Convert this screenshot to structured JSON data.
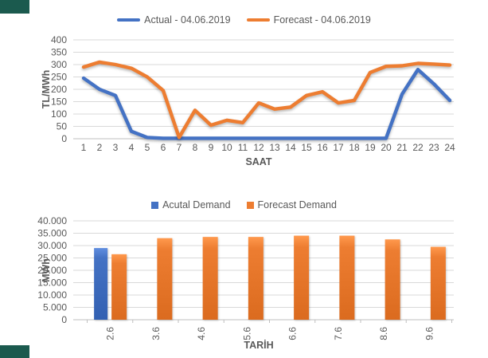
{
  "page": {
    "background": "#ffffff",
    "corner_accent_color": "#1B5A4E",
    "text_color": "#595959",
    "grid_color": "#D9D9D9",
    "axis_color": "#BFBFBF"
  },
  "chart_data": [
    {
      "type": "line",
      "title": "",
      "xlabel": "SAAT",
      "ylabel": "TL/MWh",
      "ylim": [
        0,
        400
      ],
      "ytick_labels": [
        "400",
        "350",
        "300",
        "250",
        "200",
        "150",
        "100",
        "50",
        "0"
      ],
      "categories": [
        "1",
        "2",
        "3",
        "4",
        "5",
        "6",
        "7",
        "8",
        "9",
        "10",
        "11",
        "12",
        "13",
        "14",
        "15",
        "16",
        "17",
        "18",
        "19",
        "20",
        "21",
        "22",
        "23",
        "24"
      ],
      "grid": true,
      "legend_position": "top",
      "series": [
        {
          "name": "Actual - 04.06.2019",
          "color": "#4472C4",
          "values": [
            245,
            200,
            175,
            30,
            5,
            2,
            2,
            2,
            2,
            2,
            2,
            2,
            2,
            2,
            2,
            2,
            2,
            2,
            2,
            2,
            180,
            280,
            222,
            155
          ]
        },
        {
          "name": "Forecast - 04.06.2019",
          "color": "#ED7D31",
          "values": [
            290,
            310,
            300,
            285,
            250,
            195,
            5,
            115,
            55,
            75,
            65,
            145,
            120,
            128,
            175,
            190,
            145,
            155,
            268,
            293,
            295,
            305,
            302,
            298
          ]
        }
      ]
    },
    {
      "type": "bar",
      "title": "",
      "xlabel": "TARİH",
      "ylabel": "MWh",
      "ylim": [
        0,
        40000
      ],
      "ytick_labels": [
        "40.000",
        "35.000",
        "30.000",
        "25.000",
        "20.000",
        "15.000",
        "10.000",
        "5.000",
        "0"
      ],
      "categories": [
        "2.6",
        "3.6",
        "4.6",
        "5.6",
        "6.6",
        "7.6",
        "8.6",
        "9.6"
      ],
      "grid": true,
      "legend_position": "top",
      "series": [
        {
          "name": "Acutal Demand",
          "color": "#4472C4",
          "values": [
            29000,
            null,
            null,
            null,
            null,
            null,
            null,
            null
          ]
        },
        {
          "name": "Forecast Demand",
          "color": "#ED7D31",
          "values": [
            26500,
            33000,
            33500,
            33500,
            34000,
            34000,
            32500,
            29500
          ]
        }
      ]
    }
  ]
}
